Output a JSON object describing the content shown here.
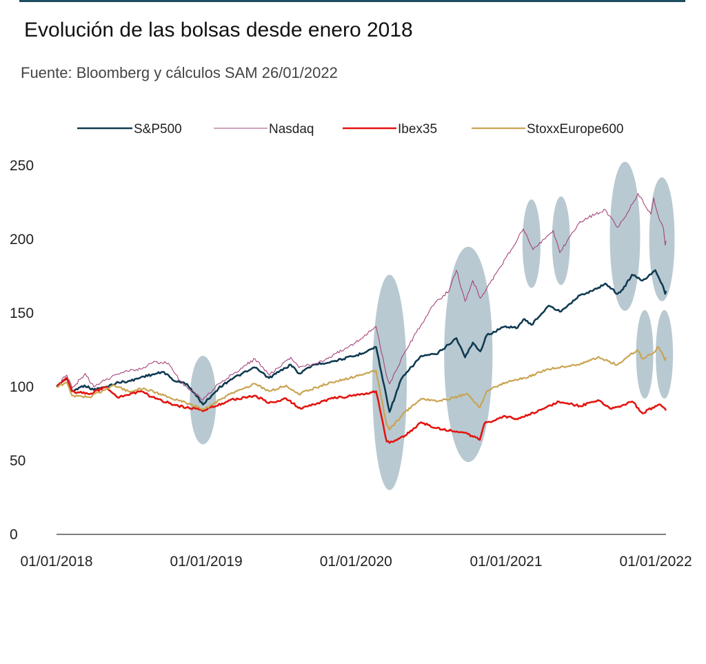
{
  "title": "Evolución de las bolsas desde enero 2018",
  "source": "Fuente: Bloomberg y cálculos SAM 26/01/2022",
  "colors": {
    "header_rule": "#1d4e5f",
    "axis": "#7f7f7f",
    "highlight": "#b8c9d1"
  },
  "chart_data": {
    "type": "line",
    "title": "Evolución de las bolsas desde enero 2018",
    "subtitle": "Fuente: Bloomberg y cálculos SAM 26/01/2022",
    "xlabel": "",
    "ylabel": "",
    "x_range": [
      "2018-01-01",
      "2022-01-26"
    ],
    "x_ticks": [
      "01/01/2018",
      "01/01/2019",
      "01/01/2020",
      "01/01/2021",
      "01/01/2022"
    ],
    "x_tick_values": [
      "2018-01-01",
      "2019-01-01",
      "2020-01-01",
      "2021-01-01",
      "2022-01-01"
    ],
    "ylim": [
      0,
      250
    ],
    "y_ticks": [
      0,
      50,
      100,
      150,
      200,
      250
    ],
    "grid": false,
    "legend_position": "top",
    "series": [
      {
        "name": "S&P500",
        "color": "#0f3a52",
        "points": [
          [
            "2018-01-01",
            100
          ],
          [
            "2018-01-26",
            106
          ],
          [
            "2018-02-08",
            97
          ],
          [
            "2018-03-10",
            101
          ],
          [
            "2018-04-01",
            98
          ],
          [
            "2018-05-01",
            100
          ],
          [
            "2018-06-01",
            103
          ],
          [
            "2018-07-01",
            104
          ],
          [
            "2018-08-01",
            107
          ],
          [
            "2018-09-20",
            110
          ],
          [
            "2018-10-15",
            104
          ],
          [
            "2018-11-15",
            102
          ],
          [
            "2018-12-24",
            88
          ],
          [
            "2019-01-31",
            99
          ],
          [
            "2019-03-01",
            105
          ],
          [
            "2019-04-30",
            113
          ],
          [
            "2019-06-03",
            106
          ],
          [
            "2019-07-26",
            115
          ],
          [
            "2019-08-15",
            109
          ],
          [
            "2019-09-20",
            115
          ],
          [
            "2019-11-01",
            117
          ],
          [
            "2019-12-31",
            121
          ],
          [
            "2020-02-19",
            127
          ],
          [
            "2020-03-23",
            83
          ],
          [
            "2020-04-20",
            105
          ],
          [
            "2020-06-08",
            121
          ],
          [
            "2020-07-15",
            122
          ],
          [
            "2020-09-02",
            133
          ],
          [
            "2020-09-23",
            120
          ],
          [
            "2020-10-12",
            130
          ],
          [
            "2020-10-30",
            124
          ],
          [
            "2020-11-15",
            135
          ],
          [
            "2020-12-31",
            141
          ],
          [
            "2021-01-29",
            140
          ],
          [
            "2021-02-15",
            146
          ],
          [
            "2021-03-04",
            142
          ],
          [
            "2021-04-15",
            155
          ],
          [
            "2021-05-12",
            151
          ],
          [
            "2021-06-30",
            162
          ],
          [
            "2021-07-31",
            165
          ],
          [
            "2021-08-31",
            170
          ],
          [
            "2021-09-30",
            163
          ],
          [
            "2021-10-13",
            166
          ],
          [
            "2021-11-04",
            176
          ],
          [
            "2021-11-30",
            172
          ],
          [
            "2021-12-31",
            179
          ],
          [
            "2022-01-10",
            173
          ],
          [
            "2022-01-19",
            168
          ],
          [
            "2022-01-24",
            163
          ],
          [
            "2022-01-26",
            165
          ]
        ]
      },
      {
        "name": "Nasdaq",
        "color": "#a5437a",
        "points": [
          [
            "2018-01-01",
            100
          ],
          [
            "2018-01-26",
            108
          ],
          [
            "2018-02-08",
            99
          ],
          [
            "2018-03-12",
            109
          ],
          [
            "2018-04-02",
            100
          ],
          [
            "2018-05-01",
            105
          ],
          [
            "2018-06-20",
            111
          ],
          [
            "2018-07-25",
            112
          ],
          [
            "2018-08-30",
            117
          ],
          [
            "2018-10-01",
            116
          ],
          [
            "2018-10-29",
            104
          ],
          [
            "2018-12-24",
            91
          ],
          [
            "2019-01-31",
            102
          ],
          [
            "2019-04-30",
            119
          ],
          [
            "2019-06-03",
            108
          ],
          [
            "2019-07-26",
            120
          ],
          [
            "2019-08-15",
            113
          ],
          [
            "2019-10-01",
            116
          ],
          [
            "2019-12-31",
            130
          ],
          [
            "2020-02-19",
            141
          ],
          [
            "2020-03-16",
            107
          ],
          [
            "2020-03-23",
            102
          ],
          [
            "2020-04-30",
            124
          ],
          [
            "2020-06-10",
            143
          ],
          [
            "2020-07-15",
            158
          ],
          [
            "2020-08-15",
            165
          ],
          [
            "2020-09-02",
            179
          ],
          [
            "2020-09-23",
            158
          ],
          [
            "2020-10-12",
            172
          ],
          [
            "2020-10-30",
            160
          ],
          [
            "2020-12-31",
            187
          ],
          [
            "2021-02-12",
            207
          ],
          [
            "2021-03-08",
            193
          ],
          [
            "2021-04-26",
            206
          ],
          [
            "2021-05-12",
            191
          ],
          [
            "2021-06-30",
            212
          ],
          [
            "2021-08-31",
            220
          ],
          [
            "2021-09-30",
            208
          ],
          [
            "2021-10-13",
            213
          ],
          [
            "2021-11-19",
            231
          ],
          [
            "2021-12-20",
            217
          ],
          [
            "2021-12-27",
            228
          ],
          [
            "2022-01-07",
            216
          ],
          [
            "2022-01-20",
            207
          ],
          [
            "2022-01-24",
            196
          ],
          [
            "2022-01-26",
            199
          ]
        ]
      },
      {
        "name": "Ibex35",
        "color": "#e3140f",
        "points": [
          [
            "2018-01-01",
            100
          ],
          [
            "2018-01-26",
            106
          ],
          [
            "2018-02-08",
            97
          ],
          [
            "2018-03-22",
            95
          ],
          [
            "2018-05-01",
            100
          ],
          [
            "2018-05-29",
            93
          ],
          [
            "2018-07-26",
            97
          ],
          [
            "2018-08-30",
            92
          ],
          [
            "2018-10-25",
            87
          ],
          [
            "2018-12-27",
            84
          ],
          [
            "2019-02-28",
            91
          ],
          [
            "2019-04-30",
            94
          ],
          [
            "2019-06-03",
            89
          ],
          [
            "2019-07-15",
            92
          ],
          [
            "2019-08-20",
            85
          ],
          [
            "2019-10-31",
            92
          ],
          [
            "2019-12-31",
            94
          ],
          [
            "2020-02-19",
            97
          ],
          [
            "2020-03-16",
            63
          ],
          [
            "2020-03-23",
            62
          ],
          [
            "2020-04-30",
            67
          ],
          [
            "2020-06-08",
            76
          ],
          [
            "2020-07-15",
            72
          ],
          [
            "2020-09-30",
            68
          ],
          [
            "2020-10-29",
            64
          ],
          [
            "2020-11-09",
            75
          ],
          [
            "2020-12-31",
            80
          ],
          [
            "2021-01-29",
            78
          ],
          [
            "2021-03-31",
            85
          ],
          [
            "2021-05-10",
            90
          ],
          [
            "2021-06-30",
            87
          ],
          [
            "2021-08-13",
            91
          ],
          [
            "2021-09-15",
            85
          ],
          [
            "2021-11-05",
            90
          ],
          [
            "2021-11-30",
            82
          ],
          [
            "2021-12-31",
            87
          ],
          [
            "2022-01-12",
            88
          ],
          [
            "2022-01-20",
            86
          ],
          [
            "2022-01-26",
            84
          ]
        ]
      },
      {
        "name": "StoxxEurope600",
        "color": "#c9a451",
        "points": [
          [
            "2018-01-01",
            100
          ],
          [
            "2018-01-26",
            103
          ],
          [
            "2018-02-08",
            94
          ],
          [
            "2018-03-22",
            93
          ],
          [
            "2018-05-22",
            101
          ],
          [
            "2018-06-25",
            97
          ],
          [
            "2018-08-01",
            99
          ],
          [
            "2018-10-24",
            91
          ],
          [
            "2018-12-27",
            85
          ],
          [
            "2019-02-28",
            95
          ],
          [
            "2019-04-30",
            102
          ],
          [
            "2019-06-03",
            97
          ],
          [
            "2019-07-15",
            101
          ],
          [
            "2019-08-14",
            95
          ],
          [
            "2019-10-31",
            103
          ],
          [
            "2019-12-31",
            107
          ],
          [
            "2020-02-19",
            111
          ],
          [
            "2020-03-16",
            74
          ],
          [
            "2020-03-23",
            71
          ],
          [
            "2020-04-30",
            83
          ],
          [
            "2020-06-08",
            92
          ],
          [
            "2020-07-15",
            90
          ],
          [
            "2020-09-30",
            95
          ],
          [
            "2020-10-29",
            86
          ],
          [
            "2020-11-15",
            97
          ],
          [
            "2020-12-31",
            103
          ],
          [
            "2021-02-15",
            106
          ],
          [
            "2021-04-15",
            112
          ],
          [
            "2021-06-30",
            115
          ],
          [
            "2021-08-12",
            120
          ],
          [
            "2021-09-30",
            115
          ],
          [
            "2021-11-17",
            125
          ],
          [
            "2021-11-30",
            119
          ],
          [
            "2021-12-31",
            124
          ],
          [
            "2022-01-05",
            127
          ],
          [
            "2022-01-14",
            124
          ],
          [
            "2022-01-24",
            118
          ],
          [
            "2022-01-26",
            120
          ]
        ]
      }
    ],
    "annotations": [
      {
        "type": "highlight-ellipse",
        "center": [
          "2018-12-24",
          91
        ],
        "span_days": 64,
        "span_value": 60
      },
      {
        "type": "highlight-ellipse",
        "center": [
          "2020-03-23",
          103
        ],
        "span_days": 84,
        "span_value": 146
      },
      {
        "type": "highlight-ellipse",
        "center": [
          "2020-10-01",
          122
        ],
        "span_days": 118,
        "span_value": 146
      },
      {
        "type": "highlight-ellipse",
        "center": [
          "2021-03-04",
          197
        ],
        "span_days": 44,
        "span_value": 60
      },
      {
        "type": "highlight-ellipse",
        "center": [
          "2021-05-15",
          199
        ],
        "span_days": 44,
        "span_value": 60
      },
      {
        "type": "highlight-ellipse",
        "center": [
          "2021-10-18",
          202
        ],
        "span_days": 74,
        "span_value": 101
      },
      {
        "type": "highlight-ellipse",
        "center": [
          "2022-01-16",
          200
        ],
        "span_days": 62,
        "span_value": 84
      },
      {
        "type": "highlight-ellipse",
        "center": [
          "2021-12-05",
          122
        ],
        "span_days": 42,
        "span_value": 60
      },
      {
        "type": "highlight-ellipse",
        "center": [
          "2022-01-22",
          122
        ],
        "span_days": 42,
        "span_value": 60
      }
    ]
  }
}
